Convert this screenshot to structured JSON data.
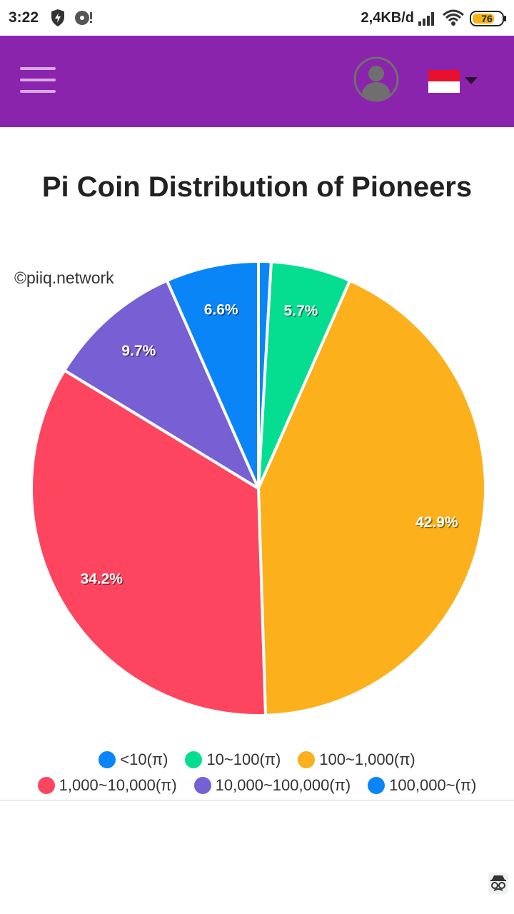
{
  "status_bar": {
    "time": "3:22",
    "network_speed": "2,4KB/d",
    "battery_level": "76",
    "icons": [
      "shield-bolt-icon",
      "disc-alert-icon",
      "signal-icon",
      "wifi-icon",
      "battery-icon"
    ]
  },
  "app_bar": {
    "background": "#8a24ad",
    "icons": [
      "menu-icon",
      "account-icon",
      "indonesia-flag-icon",
      "caret-down-icon"
    ]
  },
  "page": {
    "title": "Pi Coin Distribution of Pioneers",
    "watermark": "©piiq.network"
  },
  "chart_data": {
    "type": "pie",
    "title": "Pi Coin Distribution of Pioneers",
    "slices": [
      {
        "label": "<10(π)",
        "value": 0.9,
        "color": "#0a85f7",
        "data_label": ""
      },
      {
        "label": "10~100(π)",
        "value": 5.7,
        "color": "#05de91",
        "data_label": "5.7%"
      },
      {
        "label": "100~1,000(π)",
        "value": 42.9,
        "color": "#fbb01c",
        "data_label": "42.9%"
      },
      {
        "label": "1,000~10,000(π)",
        "value": 34.2,
        "color": "#fe4560",
        "data_label": "34.2%"
      },
      {
        "label": "10,000~100,000(π)",
        "value": 9.7,
        "color": "#775fd4",
        "data_label": "9.7%"
      },
      {
        "label": "100,000~(π)",
        "value": 6.6,
        "color": "#0a85f7",
        "data_label": "6.6%"
      }
    ],
    "start_angle": "top",
    "direction": "clockwise",
    "legend_placement": "bottom"
  }
}
